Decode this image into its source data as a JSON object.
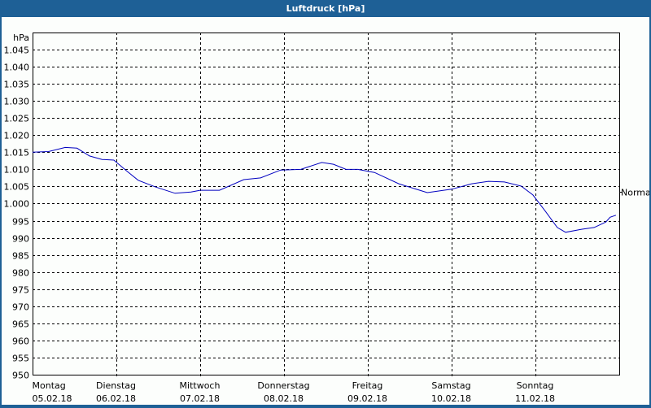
{
  "window": {
    "title": "Luftdruck [hPa]"
  },
  "colors": {
    "titlebar": "#1e6096",
    "series": "#0000c0",
    "background": "#fcfefc"
  },
  "chart_data": {
    "type": "line",
    "title": "Luftdruck [hPa]",
    "ylabel": "hPa",
    "xlabel": "",
    "ylim": [
      950,
      1045
    ],
    "grid": true,
    "y_ticks": [
      "1.045",
      "1.040",
      "1.035",
      "1.030",
      "1.025",
      "1.020",
      "1.015",
      "1.010",
      "1.005",
      "1.000",
      "995",
      "990",
      "985",
      "980",
      "975",
      "970",
      "965",
      "960",
      "955",
      "950"
    ],
    "x_ticks": [
      {
        "day": "Montag",
        "date": "05.02.18"
      },
      {
        "day": "Dienstag",
        "date": "06.02.18"
      },
      {
        "day": "Mittwoch",
        "date": "07.02.18"
      },
      {
        "day": "Donnerstag",
        "date": "08.02.18"
      },
      {
        "day": "Freitag",
        "date": "09.02.18"
      },
      {
        "day": "Samstag",
        "date": "10.02.18"
      },
      {
        "day": "Sonntag",
        "date": "11.02.18"
      }
    ],
    "annotations": [
      {
        "label": "Normal",
        "value": 1003.5
      }
    ],
    "series": [
      {
        "name": "Luftdruck",
        "x_days": [
          0,
          0.19,
          0.39,
          0.53,
          0.68,
          0.83,
          0.97,
          1.12,
          1.26,
          1.46,
          1.7,
          1.89,
          2.0,
          2.23,
          2.52,
          2.72,
          2.96,
          3.2,
          3.45,
          3.59,
          3.74,
          3.88,
          4.08,
          4.37,
          4.71,
          5.0,
          5.24,
          5.44,
          5.63,
          5.83,
          5.97,
          6.12,
          6.26,
          6.36,
          6.55,
          6.7,
          6.84,
          6.89,
          6.96
        ],
        "values": [
          1015.0,
          1015.2,
          1016.4,
          1016.2,
          1013.9,
          1012.9,
          1012.7,
          1009.6,
          1006.8,
          1004.9,
          1003.0,
          1003.4,
          1003.9,
          1003.9,
          1007.0,
          1007.5,
          1009.8,
          1010.0,
          1012.0,
          1011.5,
          1010.0,
          1010.0,
          1009.1,
          1005.8,
          1003.2,
          1004.2,
          1005.8,
          1006.5,
          1006.3,
          1005.1,
          1002.5,
          997.7,
          993.0,
          991.6,
          992.5,
          993.0,
          994.6,
          996.0,
          996.6
        ]
      }
    ]
  }
}
